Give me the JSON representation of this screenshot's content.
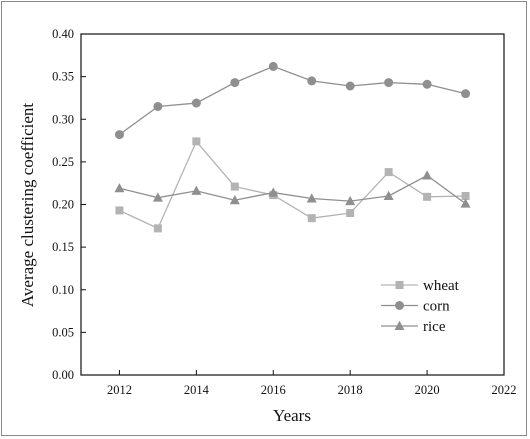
{
  "chart_data": {
    "type": "line",
    "x": [
      2012,
      2013,
      2014,
      2015,
      2016,
      2017,
      2018,
      2019,
      2020,
      2021
    ],
    "xlabel": "Years",
    "ylabel": "Average clustering coefficient",
    "xlim": [
      2011,
      2022
    ],
    "ylim": [
      0.0,
      0.4
    ],
    "xticks": [
      "2012",
      "2014",
      "2016",
      "2018",
      "2020",
      "2022"
    ],
    "yticks": [
      "0.00",
      "0.05",
      "0.10",
      "0.15",
      "0.20",
      "0.25",
      "0.30",
      "0.35",
      "0.40"
    ],
    "grid": false,
    "legend_position": "bottom-right",
    "series": [
      {
        "name": "wheat",
        "marker": "square",
        "color": "#b3b3b3",
        "values": [
          0.193,
          0.172,
          0.274,
          0.221,
          0.211,
          0.184,
          0.19,
          0.238,
          0.209,
          0.21
        ]
      },
      {
        "name": "corn",
        "marker": "circle",
        "color": "#8f8f8f",
        "values": [
          0.282,
          0.315,
          0.319,
          0.343,
          0.362,
          0.345,
          0.339,
          0.343,
          0.341,
          0.33
        ]
      },
      {
        "name": "rice",
        "marker": "triangle",
        "color": "#8f8f8f",
        "values": [
          0.219,
          0.208,
          0.216,
          0.205,
          0.214,
          0.207,
          0.204,
          0.21,
          0.234,
          0.201
        ]
      }
    ]
  }
}
